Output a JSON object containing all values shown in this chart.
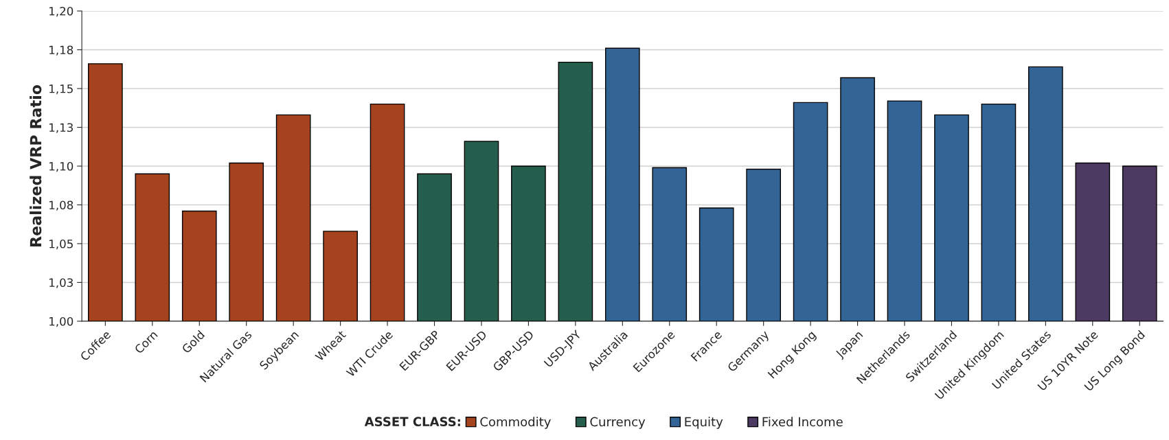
{
  "chart_data": {
    "type": "bar",
    "ylabel": "Realized VRP Ratio",
    "legend_title": "ASSET CLASS:",
    "legend": "bottom",
    "grid": "y",
    "categories": [
      "Coffee",
      "Corn",
      "Gold",
      "Natural Gas",
      "Soybean",
      "Wheat",
      "WTI Crude",
      "EUR-GBP",
      "EUR-USD",
      "GBP-USD",
      "USD-JPY",
      "Australia",
      "Eurozone",
      "France",
      "Germany",
      "Hong Kong",
      "Japan",
      "Netherlands",
      "Switzerland",
      "United Kingdom",
      "United States",
      "US 10YR Note",
      "US Long Bond"
    ],
    "series": [
      {
        "name": "Commodity",
        "color": "#a5431f",
        "values": [
          1.166,
          1.095,
          1.071,
          1.102,
          1.133,
          1.058,
          1.14,
          null,
          null,
          null,
          null,
          null,
          null,
          null,
          null,
          null,
          null,
          null,
          null,
          null,
          null,
          null,
          null
        ]
      },
      {
        "name": "Currency",
        "color": "#265e4e",
        "values": [
          null,
          null,
          null,
          null,
          null,
          null,
          null,
          1.095,
          1.116,
          1.1,
          1.167,
          null,
          null,
          null,
          null,
          null,
          null,
          null,
          null,
          null,
          null,
          null,
          null
        ]
      },
      {
        "name": "Equity",
        "color": "#326496",
        "values": [
          null,
          null,
          null,
          null,
          null,
          null,
          null,
          null,
          null,
          null,
          null,
          1.176,
          1.099,
          1.073,
          1.098,
          1.141,
          1.157,
          1.142,
          1.133,
          1.14,
          1.164,
          null,
          null
        ]
      },
      {
        "name": "Fixed Income",
        "color": "#4c3a63",
        "values": [
          null,
          null,
          null,
          null,
          null,
          null,
          null,
          null,
          null,
          null,
          null,
          null,
          null,
          null,
          null,
          null,
          null,
          null,
          null,
          null,
          null,
          1.102,
          1.1
        ]
      }
    ],
    "ylim": [
      1.0,
      1.2
    ],
    "yticks": [
      {
        "value": 1.0,
        "label": "1,00"
      },
      {
        "value": 1.025,
        "label": "1,03"
      },
      {
        "value": 1.05,
        "label": "1,05"
      },
      {
        "value": 1.075,
        "label": "1,08"
      },
      {
        "value": 1.1,
        "label": "1,10"
      },
      {
        "value": 1.125,
        "label": "1,13"
      },
      {
        "value": 1.15,
        "label": "1,15"
      },
      {
        "value": 1.175,
        "label": "1,18"
      },
      {
        "value": 1.2,
        "label": "1,20"
      }
    ]
  }
}
